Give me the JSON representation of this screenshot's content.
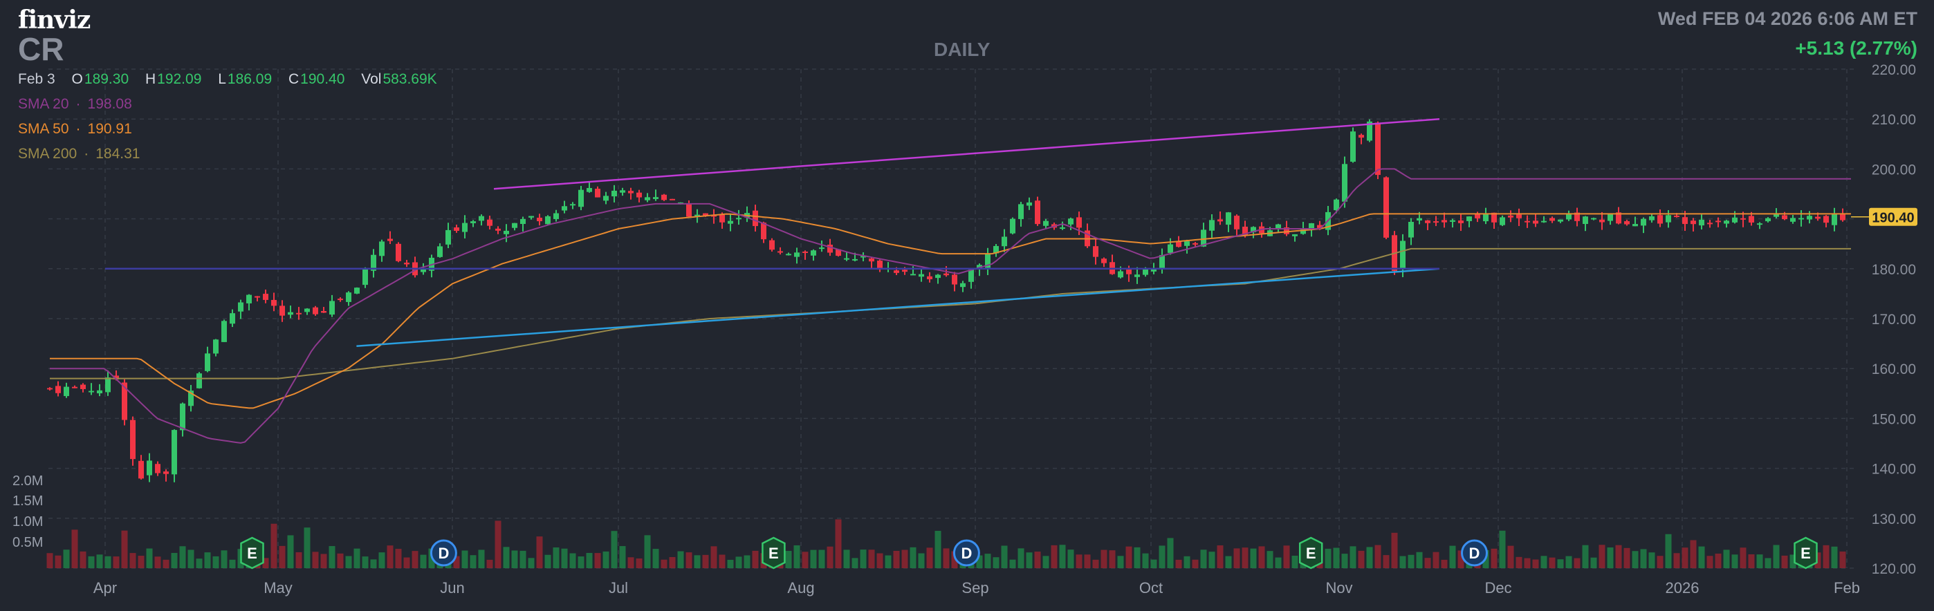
{
  "header": {
    "logo": "finviz",
    "ticker": "CR",
    "timeframe": "DAILY",
    "datetime": "Wed FEB 04 2026 6:06 AM ET",
    "change": "+5.13 (2.77%)"
  },
  "ohlc": {
    "date": "Feb 3",
    "open_label": "O",
    "open": "189.30",
    "high_label": "H",
    "high": "192.09",
    "low_label": "L",
    "low": "186.09",
    "close_label": "C",
    "close": "190.40",
    "vol_label": "Vol",
    "vol": "583.69K"
  },
  "sma": [
    {
      "label": "SMA 20",
      "value": "198.08",
      "color": "#8e3a8e"
    },
    {
      "label": "SMA 50",
      "value": "190.91",
      "color": "#e88a30"
    },
    {
      "label": "SMA 200",
      "value": "184.31",
      "color": "#9a8a4a"
    }
  ],
  "colors": {
    "up": "#36c76b",
    "down": "#f23645",
    "volume_up": "#1f7a45",
    "volume_down": "#8a2530",
    "grid": "#353a45",
    "price_tag": "#f0c23c",
    "purple_trend": "#c03cd6",
    "blue_trend": "#2a9fe0",
    "support_line": "#3c3ca0"
  },
  "chart_data": {
    "type": "candlestick",
    "y_axis_ticks": [
      "220.00",
      "210.00",
      "200.00",
      "190.00",
      "180.00",
      "170.00",
      "160.00",
      "150.00",
      "140.00",
      "130.00",
      "120.00"
    ],
    "ylim": [
      120,
      220
    ],
    "x_axis_labels": [
      "Apr",
      "May",
      "Jun",
      "Jul",
      "Aug",
      "Sep",
      "Oct",
      "Nov",
      "Dec",
      "2026",
      "Feb"
    ],
    "volume_axis_labels": [
      "2.0M",
      "1.5M",
      "1.0M",
      "0.5M"
    ],
    "last_price_tag": "190.40",
    "event_markers": [
      {
        "type": "E",
        "month_index": 1,
        "offset": -0.15
      },
      {
        "type": "D",
        "month_index": 2,
        "offset": -0.05
      },
      {
        "type": "E",
        "month_index": 3,
        "offset": 0.85
      },
      {
        "type": "D",
        "month_index": 4,
        "offset": 0.95
      },
      {
        "type": "E",
        "month_index": 6,
        "offset": 0.85
      },
      {
        "type": "D",
        "month_index": 7,
        "offset": 0.85
      },
      {
        "type": "E",
        "month_index": 9,
        "offset": 0.75
      }
    ],
    "price_anchors": [
      [
        0,
        156
      ],
      [
        0.05,
        160
      ],
      [
        0.1,
        153
      ],
      [
        0.15,
        143
      ],
      [
        0.2,
        138
      ],
      [
        0.25,
        141
      ],
      [
        0.3,
        139
      ],
      [
        0.35,
        138
      ],
      [
        0.38,
        145
      ],
      [
        0.42,
        150
      ],
      [
        0.47,
        155
      ],
      [
        0.55,
        160
      ],
      [
        0.65,
        167
      ],
      [
        0.75,
        172
      ],
      [
        0.85,
        176
      ],
      [
        0.95,
        173
      ],
      [
        1.05,
        170
      ],
      [
        1.15,
        171
      ],
      [
        1.25,
        172
      ],
      [
        1.35,
        174
      ],
      [
        1.45,
        176
      ],
      [
        1.55,
        184
      ],
      [
        1.62,
        187
      ],
      [
        1.7,
        181
      ],
      [
        1.8,
        178
      ],
      [
        1.9,
        183
      ],
      [
        2.0,
        188
      ],
      [
        2.15,
        191
      ],
      [
        2.3,
        188
      ],
      [
        2.45,
        190
      ],
      [
        2.6,
        191
      ],
      [
        2.75,
        194
      ],
      [
        2.8,
        196
      ],
      [
        2.9,
        195
      ],
      [
        3.0,
        195
      ],
      [
        3.1,
        194
      ],
      [
        3.2,
        195
      ],
      [
        3.3,
        193
      ],
      [
        3.4,
        191
      ],
      [
        3.5,
        190
      ],
      [
        3.6,
        190
      ],
      [
        3.7,
        191
      ],
      [
        3.8,
        185
      ],
      [
        4.0,
        183
      ],
      [
        4.1,
        184
      ],
      [
        4.2,
        182
      ],
      [
        4.3,
        183
      ],
      [
        4.4,
        181
      ],
      [
        4.5,
        180
      ],
      [
        4.6,
        180
      ],
      [
        4.7,
        179
      ],
      [
        4.8,
        178
      ],
      [
        4.9,
        177
      ],
      [
        5.0,
        180
      ],
      [
        5.1,
        184
      ],
      [
        5.2,
        188
      ],
      [
        5.28,
        196
      ],
      [
        5.35,
        190
      ],
      [
        5.45,
        189
      ],
      [
        5.55,
        189
      ],
      [
        5.6,
        187
      ],
      [
        5.7,
        182
      ],
      [
        5.8,
        179
      ],
      [
        5.9,
        180
      ],
      [
        6.0,
        179
      ],
      [
        6.1,
        184
      ],
      [
        6.2,
        185
      ],
      [
        6.3,
        188
      ],
      [
        6.4,
        191
      ],
      [
        6.5,
        187
      ],
      [
        6.6,
        188
      ],
      [
        6.7,
        188
      ],
      [
        6.8,
        187
      ],
      [
        6.9,
        189
      ],
      [
        7.0,
        194
      ],
      [
        7.08,
        208
      ],
      [
        7.15,
        206
      ],
      [
        7.2,
        210
      ],
      [
        7.26,
        196
      ],
      [
        7.3,
        186
      ],
      [
        7.35,
        180
      ],
      [
        7.4,
        185
      ],
      [
        7.45,
        190
      ]
    ],
    "sma20_anchors": [
      [
        0.0,
        160
      ],
      [
        0.3,
        150
      ],
      [
        0.6,
        146
      ],
      [
        0.8,
        145
      ],
      [
        1.0,
        152
      ],
      [
        1.2,
        164
      ],
      [
        1.4,
        172
      ],
      [
        1.6,
        176
      ],
      [
        1.8,
        180
      ],
      [
        2.0,
        182
      ],
      [
        2.3,
        186
      ],
      [
        2.6,
        189
      ],
      [
        3.0,
        192
      ],
      [
        3.2,
        193
      ],
      [
        3.5,
        193
      ],
      [
        3.8,
        189
      ],
      [
        4.0,
        186
      ],
      [
        4.3,
        183
      ],
      [
        4.6,
        181
      ],
      [
        4.9,
        179
      ],
      [
        5.1,
        181
      ],
      [
        5.3,
        187
      ],
      [
        5.5,
        189
      ],
      [
        5.7,
        186
      ],
      [
        6.0,
        182
      ],
      [
        6.3,
        185
      ],
      [
        6.6,
        188
      ],
      [
        6.9,
        188
      ],
      [
        7.1,
        196
      ],
      [
        7.25,
        200
      ],
      [
        7.35,
        200
      ],
      [
        7.45,
        198
      ]
    ],
    "sma50_anchors": [
      [
        0.0,
        162
      ],
      [
        0.2,
        162
      ],
      [
        0.4,
        157
      ],
      [
        0.6,
        153
      ],
      [
        0.85,
        152
      ],
      [
        1.1,
        155
      ],
      [
        1.4,
        160
      ],
      [
        1.6,
        165
      ],
      [
        1.8,
        172
      ],
      [
        2.0,
        177
      ],
      [
        2.3,
        181
      ],
      [
        2.6,
        184
      ],
      [
        3.0,
        188
      ],
      [
        3.3,
        190
      ],
      [
        3.6,
        191
      ],
      [
        3.9,
        190
      ],
      [
        4.2,
        188
      ],
      [
        4.5,
        185
      ],
      [
        4.8,
        183
      ],
      [
        5.1,
        183
      ],
      [
        5.4,
        186
      ],
      [
        5.7,
        186
      ],
      [
        6.0,
        185
      ],
      [
        6.3,
        186
      ],
      [
        6.6,
        187
      ],
      [
        6.9,
        188
      ],
      [
        7.2,
        191
      ],
      [
        7.45,
        191
      ]
    ],
    "sma200_anchors": [
      [
        0.0,
        158
      ],
      [
        0.5,
        158
      ],
      [
        1.0,
        158
      ],
      [
        1.5,
        160
      ],
      [
        2.0,
        162
      ],
      [
        2.5,
        165
      ],
      [
        3.0,
        168
      ],
      [
        3.5,
        170
      ],
      [
        4.0,
        171
      ],
      [
        4.5,
        172
      ],
      [
        5.0,
        173
      ],
      [
        5.5,
        175
      ],
      [
        6.0,
        176
      ],
      [
        6.5,
        177
      ],
      [
        7.0,
        180
      ],
      [
        7.45,
        184
      ]
    ],
    "trendlines": [
      {
        "name": "purple",
        "from": [
          2.25,
          196
        ],
        "to": [
          7.5,
          210
        ]
      },
      {
        "name": "blue",
        "from": [
          1.45,
          164.5
        ],
        "to": [
          7.5,
          180
        ]
      },
      {
        "name": "support",
        "from": [
          0.0,
          180
        ],
        "to": [
          7.5,
          180
        ]
      }
    ]
  }
}
